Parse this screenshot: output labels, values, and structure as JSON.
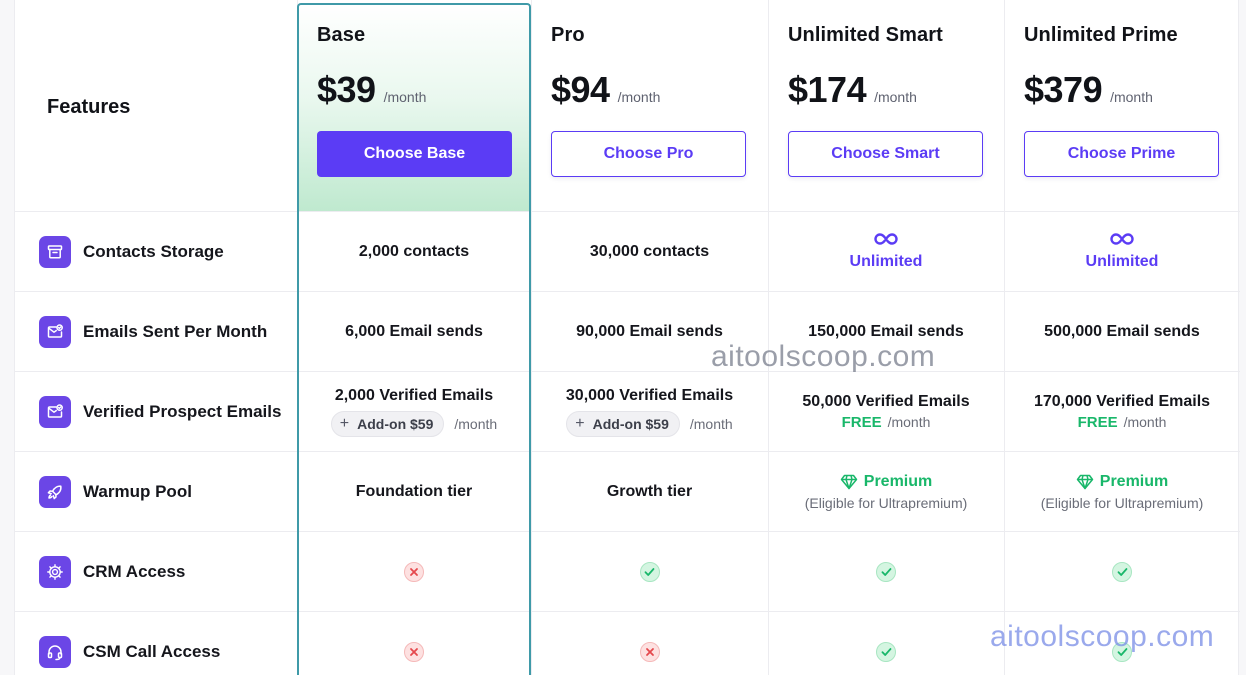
{
  "features_title": "Features",
  "plans": [
    {
      "name": "Base",
      "price": "$39",
      "per": "/month",
      "button": "Choose Base"
    },
    {
      "name": "Pro",
      "price": "$94",
      "per": "/month",
      "button": "Choose Pro"
    },
    {
      "name": "Unlimited Smart",
      "price": "$174",
      "per": "/month",
      "button": "Choose Smart"
    },
    {
      "name": "Unlimited Prime",
      "price": "$379",
      "per": "/month",
      "button": "Choose Prime"
    }
  ],
  "features": [
    {
      "label": "Contacts Storage",
      "icon": "archive-icon",
      "values": [
        "2,000 contacts",
        "30,000 contacts",
        "Unlimited",
        "Unlimited"
      ]
    },
    {
      "label": "Emails Sent Per Month",
      "icon": "mail-check-icon",
      "values": [
        "6,000 Email sends",
        "90,000 Email sends",
        "150,000 Email sends",
        "500,000 Email sends"
      ]
    },
    {
      "label": "Verified Prospect Emails",
      "icon": "mail-check-icon",
      "values": [
        {
          "main": "2,000 Verified Emails",
          "addon": "Add-on $59",
          "per": "/month"
        },
        {
          "main": "30,000 Verified Emails",
          "addon": "Add-on $59",
          "per": "/month"
        },
        {
          "main": "50,000 Verified Emails",
          "free": "FREE",
          "per": "/month"
        },
        {
          "main": "170,000 Verified Emails",
          "free": "FREE",
          "per": "/month"
        }
      ]
    },
    {
      "label": "Warmup Pool",
      "icon": "rocket-icon",
      "values": [
        {
          "main": "Foundation tier"
        },
        {
          "main": "Growth tier"
        },
        {
          "premium": "Premium",
          "note": "(Eligible for Ultrapremium)"
        },
        {
          "premium": "Premium",
          "note": "(Eligible for Ultrapremium)"
        }
      ]
    },
    {
      "label": "CRM Access",
      "icon": "gear-icon",
      "values": [
        "no",
        "yes",
        "yes",
        "yes"
      ]
    },
    {
      "label": "CSM Call Access",
      "icon": "headset-icon",
      "values": [
        "no",
        "no",
        "yes",
        "yes"
      ]
    }
  ],
  "watermarks": [
    "aitoolscoop.com",
    "aitoolscoop.com"
  ],
  "colors": {
    "accent": "#5b3cf5",
    "highlight_border": "#3f9aa8",
    "success": "#19b76a",
    "danger": "#e5484d"
  }
}
